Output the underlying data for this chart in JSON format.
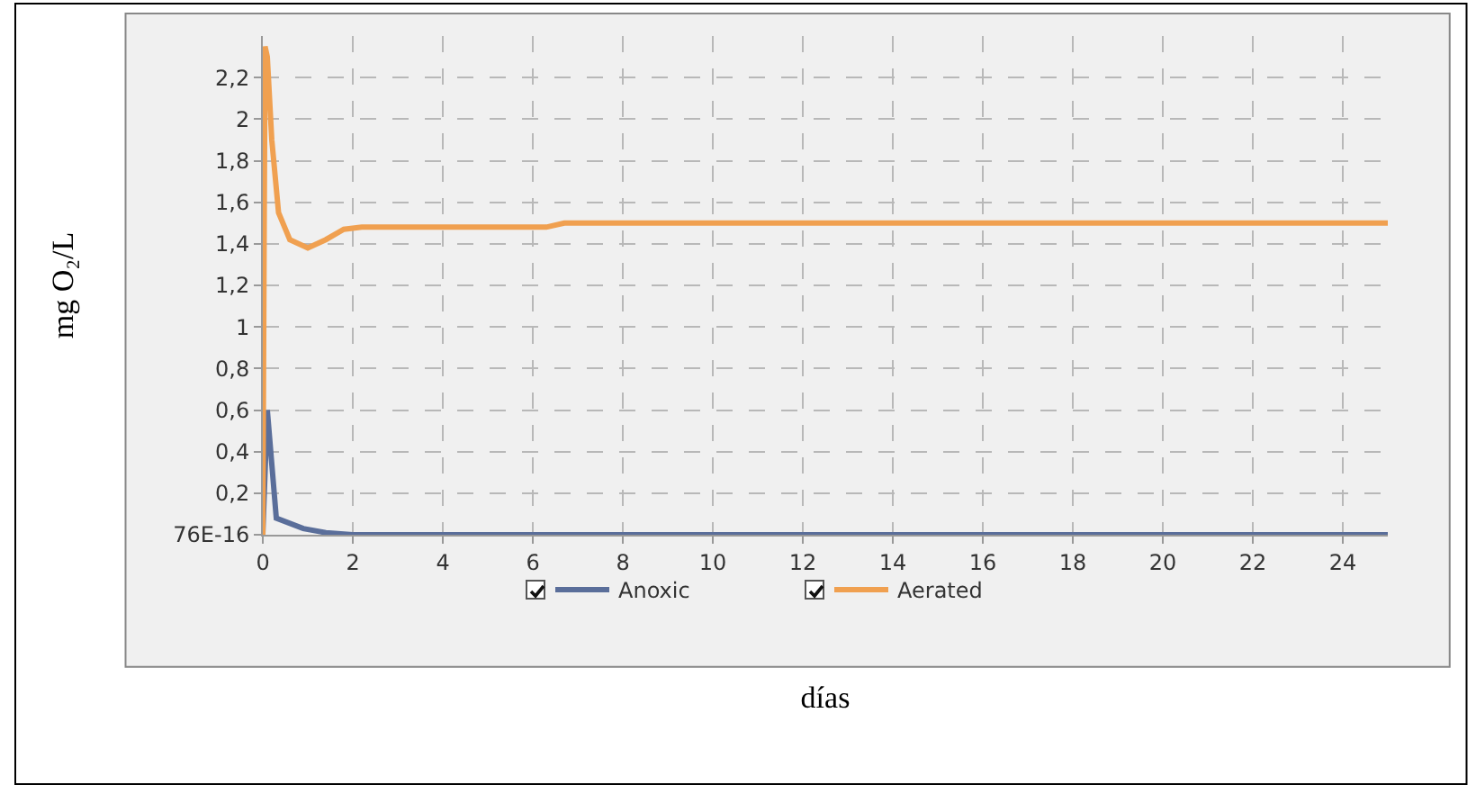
{
  "chart_data": {
    "type": "line",
    "xlabel": "días",
    "ylabel": "mg O₂/L",
    "xlim": [
      0,
      25
    ],
    "xticks": [
      0,
      2,
      4,
      6,
      8,
      10,
      12,
      14,
      16,
      18,
      20,
      22,
      24
    ],
    "ylim": [
      0,
      2.4
    ],
    "yticks": [
      {
        "value": 0,
        "label": "76E-16"
      },
      {
        "value": 0.2,
        "label": "0,2"
      },
      {
        "value": 0.4,
        "label": "0,4"
      },
      {
        "value": 0.6,
        "label": "0,6"
      },
      {
        "value": 0.8,
        "label": "0,8"
      },
      {
        "value": 1,
        "label": "1"
      },
      {
        "value": 1.2,
        "label": "1,2"
      },
      {
        "value": 1.4,
        "label": "1,4"
      },
      {
        "value": 1.6,
        "label": "1,6"
      },
      {
        "value": 1.8,
        "label": "1,8"
      },
      {
        "value": 2,
        "label": "2"
      },
      {
        "value": 2.2,
        "label": "2,2"
      }
    ],
    "grid": true,
    "legend": "bottom",
    "marker": "none",
    "line_style": "solid",
    "series": [
      {
        "name": "Anoxic",
        "color": "#5a6e9a",
        "x": [
          0,
          0.1,
          0.3,
          0.9,
          1.4,
          2,
          25
        ],
        "values": [
          0,
          0.6,
          0.08,
          0.03,
          0.01,
          0,
          0
        ]
      },
      {
        "name": "Aerated",
        "color": "#f0a050",
        "x": [
          0,
          0.05,
          0.1,
          0.2,
          0.35,
          0.6,
          1.0,
          1.4,
          1.8,
          2.2,
          6.3,
          6.7,
          25
        ],
        "values": [
          0,
          2.35,
          2.3,
          1.9,
          1.55,
          1.42,
          1.38,
          1.42,
          1.47,
          1.48,
          1.48,
          1.5,
          1.5
        ]
      }
    ]
  }
}
